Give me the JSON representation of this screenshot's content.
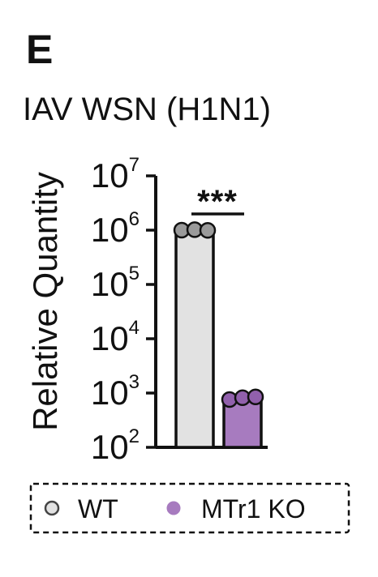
{
  "panel_label": "E",
  "colors": {
    "wt_fill": "#e2e2e2",
    "wt_marker": "#9a9a9a",
    "ko_fill": "#a77bbf",
    "ko_marker": "#9160ac",
    "ink": "#111111"
  },
  "chart_data": {
    "type": "bar",
    "title": "IAV WSN (H1N1)",
    "xlabel": "",
    "ylabel": "Relative Quantity",
    "yscale": "log",
    "ylim": [
      100,
      10000000
    ],
    "y_ticks": [
      {
        "base": "10",
        "exp": "2",
        "value": 100
      },
      {
        "base": "10",
        "exp": "3",
        "value": 1000
      },
      {
        "base": "10",
        "exp": "4",
        "value": 10000
      },
      {
        "base": "10",
        "exp": "5",
        "value": 100000
      },
      {
        "base": "10",
        "exp": "6",
        "value": 1000000
      },
      {
        "base": "10",
        "exp": "7",
        "value": 10000000
      }
    ],
    "categories": [
      "WT",
      "MTr1 KO"
    ],
    "series": [
      {
        "name": "WT",
        "value": 1000000,
        "points": [
          1000000,
          1020000,
          990000
        ]
      },
      {
        "name": "MTr1 KO",
        "value": 800,
        "points": [
          760,
          820,
          850
        ]
      }
    ],
    "significance": {
      "label": "***",
      "between": [
        "WT",
        "MTr1 KO"
      ]
    },
    "legend": {
      "placement": "bottom",
      "items": [
        {
          "label": "WT"
        },
        {
          "label": "MTr1 KO"
        }
      ]
    }
  }
}
